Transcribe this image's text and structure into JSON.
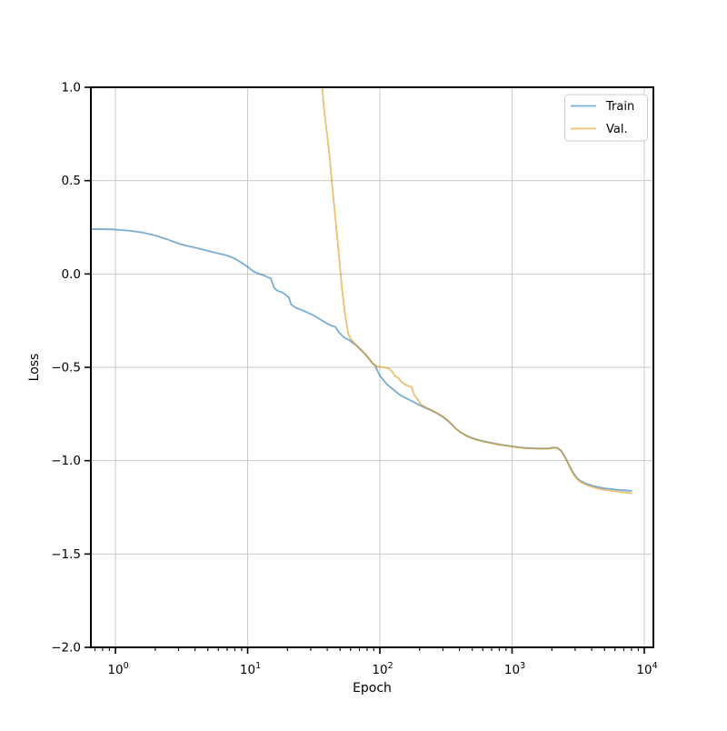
{
  "chart_data": {
    "type": "line",
    "title": "",
    "xlabel": "Epoch",
    "ylabel": "Loss",
    "x_scale": "log",
    "xlim": [
      0.652,
      11715
    ],
    "ylim": [
      -2.0,
      1.0
    ],
    "grid": true,
    "grid_color": "#c9c9c9",
    "x_major_ticks": [
      1,
      10,
      100,
      1000,
      10000
    ],
    "x_tick_labels": [
      {
        "base": "10",
        "exp": "0"
      },
      {
        "base": "10",
        "exp": "1"
      },
      {
        "base": "10",
        "exp": "2"
      },
      {
        "base": "10",
        "exp": "3"
      },
      {
        "base": "10",
        "exp": "4"
      }
    ],
    "y_major_ticks": [
      1.0,
      0.5,
      0.0,
      -0.5,
      -1.0,
      -1.5,
      -2.0
    ],
    "y_tick_labels": [
      "1.0",
      "0.5",
      "0.0",
      "−0.5",
      "−1.0",
      "−1.5",
      "−2.0"
    ],
    "legend": {
      "position": "upper right",
      "entries": [
        "Train",
        "Val."
      ]
    },
    "series": [
      {
        "name": "Train",
        "color": "#1f77b4",
        "opacity": 0.6,
        "points": [
          [
            0.652,
            0.24
          ],
          [
            0.8,
            0.24
          ],
          [
            1.0,
            0.238
          ],
          [
            1.3,
            0.231
          ],
          [
            1.6,
            0.222
          ],
          [
            2.0,
            0.206
          ],
          [
            2.5,
            0.184
          ],
          [
            3.0,
            0.163
          ],
          [
            3.5,
            0.15
          ],
          [
            4.2,
            0.138
          ],
          [
            5.0,
            0.124
          ],
          [
            6.0,
            0.11
          ],
          [
            7.0,
            0.099
          ],
          [
            8.0,
            0.082
          ],
          [
            9.0,
            0.06
          ],
          [
            10,
            0.038
          ],
          [
            11,
            0.015
          ],
          [
            12,
            0.003
          ],
          [
            13.5,
            -0.01
          ],
          [
            15,
            -0.025
          ],
          [
            15.8,
            -0.072
          ],
          [
            16.8,
            -0.09
          ],
          [
            18,
            -0.097
          ],
          [
            19.5,
            -0.112
          ],
          [
            20.5,
            -0.126
          ],
          [
            21.3,
            -0.163
          ],
          [
            23,
            -0.18
          ],
          [
            25,
            -0.19
          ],
          [
            27,
            -0.2
          ],
          [
            30,
            -0.214
          ],
          [
            33,
            -0.23
          ],
          [
            36,
            -0.247
          ],
          [
            40,
            -0.266
          ],
          [
            43,
            -0.277
          ],
          [
            46,
            -0.283
          ],
          [
            49,
            -0.312
          ],
          [
            52,
            -0.331
          ],
          [
            55,
            -0.345
          ],
          [
            58,
            -0.351
          ],
          [
            62,
            -0.368
          ],
          [
            66,
            -0.381
          ],
          [
            70,
            -0.398
          ],
          [
            75,
            -0.419
          ],
          [
            80,
            -0.441
          ],
          [
            84,
            -0.459
          ],
          [
            88,
            -0.479
          ],
          [
            92,
            -0.489
          ],
          [
            95,
            -0.512
          ],
          [
            100,
            -0.545
          ],
          [
            105,
            -0.563
          ],
          [
            112,
            -0.588
          ],
          [
            120,
            -0.606
          ],
          [
            130,
            -0.626
          ],
          [
            140,
            -0.645
          ],
          [
            152,
            -0.66
          ],
          [
            165,
            -0.672
          ],
          [
            180,
            -0.686
          ],
          [
            200,
            -0.703
          ],
          [
            220,
            -0.717
          ],
          [
            245,
            -0.731
          ],
          [
            270,
            -0.746
          ],
          [
            300,
            -0.766
          ],
          [
            335,
            -0.793
          ],
          [
            370,
            -0.825
          ],
          [
            410,
            -0.849
          ],
          [
            460,
            -0.869
          ],
          [
            520,
            -0.883
          ],
          [
            600,
            -0.895
          ],
          [
            700,
            -0.905
          ],
          [
            800,
            -0.913
          ],
          [
            900,
            -0.918
          ],
          [
            1000,
            -0.923
          ],
          [
            1150,
            -0.929
          ],
          [
            1300,
            -0.932
          ],
          [
            1500,
            -0.934
          ],
          [
            1700,
            -0.935
          ],
          [
            1900,
            -0.934
          ],
          [
            2050,
            -0.929
          ],
          [
            2200,
            -0.931
          ],
          [
            2350,
            -0.946
          ],
          [
            2500,
            -0.976
          ],
          [
            2650,
            -1.012
          ],
          [
            2800,
            -1.047
          ],
          [
            2950,
            -1.073
          ],
          [
            3100,
            -1.093
          ],
          [
            3300,
            -1.109
          ],
          [
            3600,
            -1.122
          ],
          [
            4000,
            -1.133
          ],
          [
            4500,
            -1.142
          ],
          [
            5000,
            -1.148
          ],
          [
            5600,
            -1.152
          ],
          [
            6300,
            -1.156
          ],
          [
            7100,
            -1.159
          ],
          [
            8000,
            -1.162
          ]
        ]
      },
      {
        "name": "Val.",
        "color": "#df9612",
        "opacity": 0.6,
        "points": [
          [
            36.6,
            1.0
          ],
          [
            38,
            0.87
          ],
          [
            40,
            0.74
          ],
          [
            42,
            0.605
          ],
          [
            43.2,
            0.5
          ],
          [
            45,
            0.375
          ],
          [
            46.8,
            0.25
          ],
          [
            48.6,
            0.13
          ],
          [
            50.5,
            0.0
          ],
          [
            52,
            -0.095
          ],
          [
            54,
            -0.19
          ],
          [
            56,
            -0.268
          ],
          [
            58,
            -0.325
          ],
          [
            60,
            -0.346
          ],
          [
            63,
            -0.363
          ],
          [
            66,
            -0.381
          ],
          [
            70,
            -0.401
          ],
          [
            74,
            -0.416
          ],
          [
            78,
            -0.433
          ],
          [
            83,
            -0.456
          ],
          [
            88,
            -0.479
          ],
          [
            93,
            -0.492
          ],
          [
            100,
            -0.497
          ],
          [
            108,
            -0.501
          ],
          [
            116,
            -0.505
          ],
          [
            124,
            -0.522
          ],
          [
            130,
            -0.546
          ],
          [
            138,
            -0.557
          ],
          [
            146,
            -0.579
          ],
          [
            155,
            -0.592
          ],
          [
            165,
            -0.6
          ],
          [
            174,
            -0.606
          ],
          [
            182,
            -0.648
          ],
          [
            192,
            -0.67
          ],
          [
            204,
            -0.698
          ],
          [
            225,
            -0.716
          ],
          [
            245,
            -0.729
          ],
          [
            270,
            -0.744
          ],
          [
            300,
            -0.763
          ],
          [
            335,
            -0.791
          ],
          [
            370,
            -0.824
          ],
          [
            410,
            -0.85
          ],
          [
            460,
            -0.871
          ],
          [
            520,
            -0.885
          ],
          [
            600,
            -0.897
          ],
          [
            700,
            -0.907
          ],
          [
            800,
            -0.915
          ],
          [
            900,
            -0.92
          ],
          [
            1000,
            -0.925
          ],
          [
            1150,
            -0.931
          ],
          [
            1300,
            -0.934
          ],
          [
            1500,
            -0.936
          ],
          [
            1700,
            -0.937
          ],
          [
            1900,
            -0.936
          ],
          [
            2050,
            -0.931
          ],
          [
            2200,
            -0.933
          ],
          [
            2350,
            -0.949
          ],
          [
            2500,
            -0.979
          ],
          [
            2650,
            -1.015
          ],
          [
            2800,
            -1.051
          ],
          [
            2950,
            -1.078
          ],
          [
            3100,
            -1.098
          ],
          [
            3300,
            -1.114
          ],
          [
            3600,
            -1.128
          ],
          [
            4000,
            -1.14
          ],
          [
            4500,
            -1.15
          ],
          [
            5000,
            -1.156
          ],
          [
            5600,
            -1.161
          ],
          [
            6300,
            -1.166
          ],
          [
            7100,
            -1.17
          ],
          [
            8000,
            -1.175
          ]
        ]
      }
    ],
    "style": {
      "spine_color": "#000000",
      "background": "#ffffff",
      "legend_border": "#cccccc",
      "legend_background": "#ffffff"
    }
  }
}
